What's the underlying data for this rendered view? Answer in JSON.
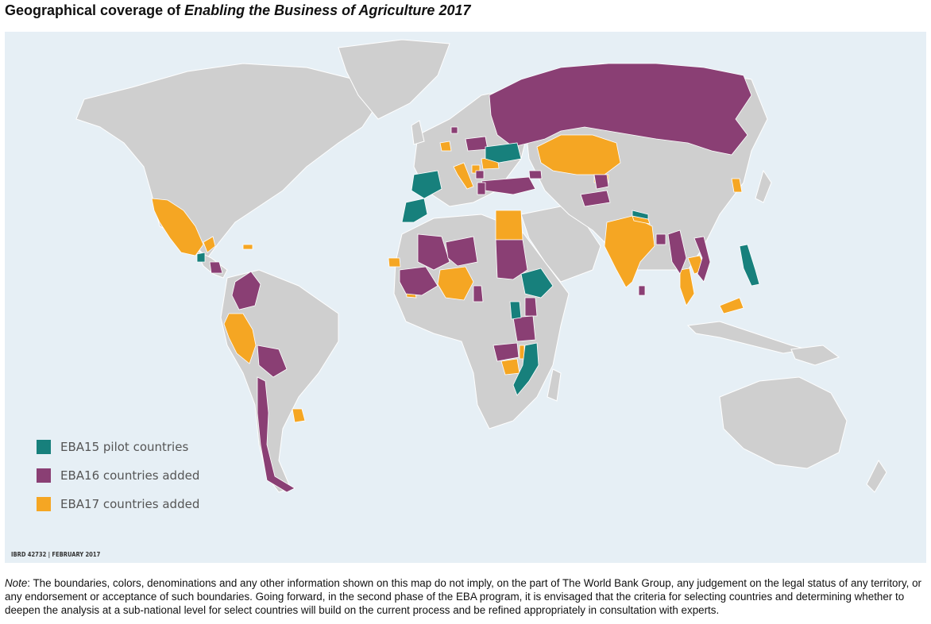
{
  "title": {
    "prefix": "Geographical coverage of ",
    "italic": "Enabling the Business of Agriculture 2017"
  },
  "colors": {
    "ocean": "#e6eff5",
    "land": "#cfcfcf",
    "eba15": "#17807c",
    "eba16": "#8a3f74",
    "eba17": "#f5a623"
  },
  "legend": [
    {
      "key": "eba15",
      "label": "EBA15 pilot countries"
    },
    {
      "key": "eba16",
      "label": "EBA16 countries added"
    },
    {
      "key": "eba17",
      "label": "EBA17 countries added"
    }
  ],
  "map_id": "IBRD 42732  |  FEBRUARY 2017",
  "note": {
    "label": "Note",
    "text": ": The boundaries, colors, denominations and any other information shown on this map do not imply, on the part of The World Bank Group, any judgement on the legal status of any territory, or any endorsement or acceptance of such boundaries. Going forward, in the second phase of the EBA program, it is envisaged that the criteria for selecting countries and determining whether to deepen the analysis at a sub-national level for select countries will build on the current process and be refined appropriately in consultation with experts."
  }
}
